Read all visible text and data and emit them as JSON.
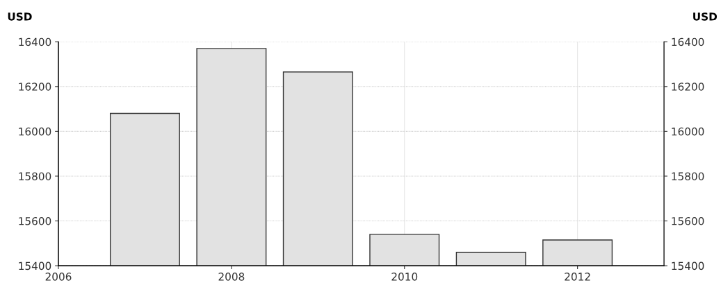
{
  "chart_data": {
    "type": "bar",
    "ylabel": "USD",
    "y2label": "USD",
    "x": [
      2007,
      2008,
      2009,
      2010,
      2011,
      2012
    ],
    "values": [
      16080,
      16370,
      16265,
      15540,
      15460,
      15515
    ],
    "color": "#e2e2e2",
    "xlim": [
      2006,
      2013
    ],
    "xticks": [
      2006,
      2008,
      2010,
      2012
    ],
    "ylim": [
      15400,
      16400
    ],
    "yticks": [
      15400,
      15600,
      15800,
      16000,
      16200,
      16400
    ],
    "y2lim": [
      15400,
      16400
    ],
    "y2ticks": [
      15400,
      15600,
      15800,
      16000,
      16200,
      16400
    ],
    "grid": true,
    "legend": false
  }
}
